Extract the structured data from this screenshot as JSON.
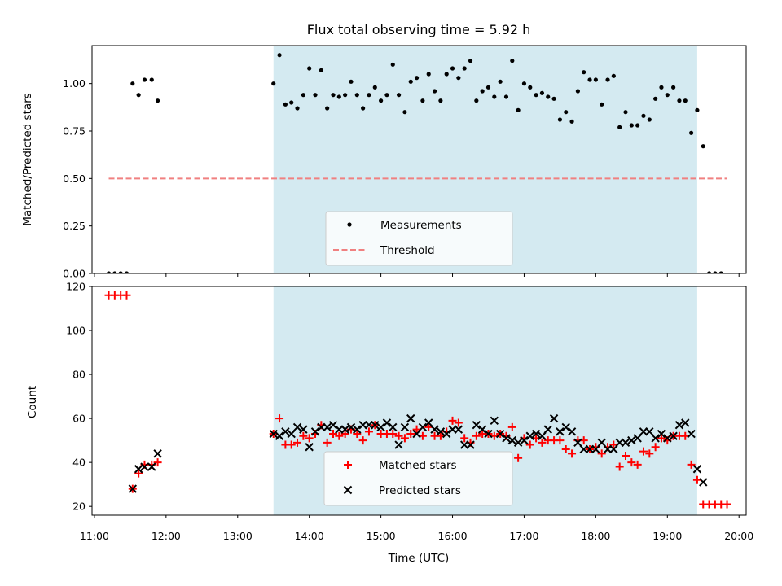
{
  "chart_data": [
    {
      "type": "scatter",
      "title": "Flux total observing time = 5.92 h",
      "xlabel": "",
      "ylabel": "Matched/Predicted stars",
      "xlim": [
        "10:58",
        "20:06"
      ],
      "ylim": [
        0,
        1.2
      ],
      "yticks": [
        "0.00",
        "0.25",
        "0.50",
        "0.75",
        "1.00"
      ],
      "shaded_interval": [
        "13:30",
        "19:25"
      ],
      "shaded_color": "#d4eaf1",
      "grid": false,
      "legend_position": "lower center",
      "legend": [
        "Measurements",
        "Threshold"
      ],
      "series": [
        {
          "name": "Measurements",
          "marker": "dot",
          "color": "#000000",
          "points": [
            [
              "11:12",
              0
            ],
            [
              "11:17",
              0
            ],
            [
              "11:22",
              0
            ],
            [
              "11:27",
              0
            ],
            [
              "11:32",
              1.0
            ],
            [
              "11:37",
              0.94
            ],
            [
              "11:42",
              1.02
            ],
            [
              "11:48",
              1.02
            ],
            [
              "11:53",
              0.91
            ],
            [
              "13:30",
              1.0
            ],
            [
              "13:35",
              1.15
            ],
            [
              "13:40",
              0.89
            ],
            [
              "13:45",
              0.9
            ],
            [
              "13:50",
              0.87
            ],
            [
              "13:55",
              0.94
            ],
            [
              "14:00",
              1.08
            ],
            [
              "14:05",
              0.94
            ],
            [
              "14:10",
              1.07
            ],
            [
              "14:15",
              0.87
            ],
            [
              "14:20",
              0.94
            ],
            [
              "14:25",
              0.93
            ],
            [
              "14:30",
              0.94
            ],
            [
              "14:35",
              1.01
            ],
            [
              "14:40",
              0.94
            ],
            [
              "14:45",
              0.87
            ],
            [
              "14:50",
              0.94
            ],
            [
              "14:55",
              0.98
            ],
            [
              "15:00",
              0.91
            ],
            [
              "15:05",
              0.94
            ],
            [
              "15:10",
              1.1
            ],
            [
              "15:15",
              0.94
            ],
            [
              "15:20",
              0.85
            ],
            [
              "15:25",
              1.01
            ],
            [
              "15:30",
              1.03
            ],
            [
              "15:35",
              0.91
            ],
            [
              "15:40",
              1.05
            ],
            [
              "15:45",
              0.96
            ],
            [
              "15:50",
              0.91
            ],
            [
              "15:55",
              1.05
            ],
            [
              "16:00",
              1.08
            ],
            [
              "16:05",
              1.03
            ],
            [
              "16:10",
              1.08
            ],
            [
              "16:15",
              1.12
            ],
            [
              "16:20",
              0.91
            ],
            [
              "16:25",
              0.96
            ],
            [
              "16:30",
              0.98
            ],
            [
              "16:35",
              0.93
            ],
            [
              "16:40",
              1.01
            ],
            [
              "16:45",
              0.93
            ],
            [
              "16:50",
              1.12
            ],
            [
              "16:55",
              0.86
            ],
            [
              "17:00",
              1.0
            ],
            [
              "17:05",
              0.98
            ],
            [
              "17:10",
              0.94
            ],
            [
              "17:15",
              0.95
            ],
            [
              "17:20",
              0.93
            ],
            [
              "17:25",
              0.92
            ],
            [
              "17:30",
              0.81
            ],
            [
              "17:35",
              0.85
            ],
            [
              "17:40",
              0.8
            ],
            [
              "17:45",
              0.96
            ],
            [
              "17:50",
              1.06
            ],
            [
              "17:55",
              1.02
            ],
            [
              "18:00",
              1.02
            ],
            [
              "18:05",
              0.89
            ],
            [
              "18:10",
              1.02
            ],
            [
              "18:15",
              1.04
            ],
            [
              "18:20",
              0.77
            ],
            [
              "18:25",
              0.85
            ],
            [
              "18:30",
              0.78
            ],
            [
              "18:35",
              0.78
            ],
            [
              "18:40",
              0.83
            ],
            [
              "18:45",
              0.81
            ],
            [
              "18:50",
              0.92
            ],
            [
              "18:55",
              0.98
            ],
            [
              "19:00",
              0.94
            ],
            [
              "19:05",
              0.98
            ],
            [
              "19:10",
              0.91
            ],
            [
              "19:15",
              0.91
            ],
            [
              "19:20",
              0.74
            ],
            [
              "19:25",
              0.86
            ],
            [
              "19:30",
              0.67
            ],
            [
              "19:35",
              0
            ],
            [
              "19:40",
              0
            ],
            [
              "19:45",
              0
            ]
          ]
        },
        {
          "name": "Threshold",
          "type": "line",
          "style": "dashed",
          "color": "#f08080",
          "x": [
            "11:12",
            "19:50"
          ],
          "y": [
            0.5,
            0.5
          ]
        }
      ]
    },
    {
      "type": "scatter",
      "title": "",
      "xlabel": "Time (UTC)",
      "ylabel": "Count",
      "xlim": [
        "10:58",
        "20:06"
      ],
      "ylim": [
        16,
        120
      ],
      "xticks": [
        "11:00",
        "12:00",
        "13:00",
        "14:00",
        "15:00",
        "16:00",
        "17:00",
        "18:00",
        "19:00",
        "20:00"
      ],
      "yticks": [
        "20",
        "40",
        "60",
        "80",
        "100",
        "120"
      ],
      "shaded_interval": [
        "13:30",
        "19:25"
      ],
      "shaded_color": "#d4eaf1",
      "grid": false,
      "legend_position": "lower center",
      "legend": [
        "Matched stars",
        "Predicted stars"
      ],
      "series": [
        {
          "name": "Matched stars",
          "marker": "plus",
          "color": "#ff0000",
          "points": [
            [
              "11:12",
              116
            ],
            [
              "11:17",
              116
            ],
            [
              "11:22",
              116
            ],
            [
              "11:27",
              116
            ],
            [
              "11:32",
              28
            ],
            [
              "11:37",
              35
            ],
            [
              "11:42",
              39
            ],
            [
              "11:48",
              39
            ],
            [
              "11:53",
              40
            ],
            [
              "13:30",
              53
            ],
            [
              "13:35",
              60
            ],
            [
              "13:40",
              48
            ],
            [
              "13:45",
              48
            ],
            [
              "13:50",
              49
            ],
            [
              "13:55",
              52
            ],
            [
              "14:00",
              51
            ],
            [
              "14:05",
              53
            ],
            [
              "14:10",
              57
            ],
            [
              "14:15",
              49
            ],
            [
              "14:20",
              53
            ],
            [
              "14:25",
              52
            ],
            [
              "14:30",
              53
            ],
            [
              "14:35",
              55
            ],
            [
              "14:40",
              53
            ],
            [
              "14:45",
              50
            ],
            [
              "14:50",
              54
            ],
            [
              "14:55",
              57
            ],
            [
              "15:00",
              53
            ],
            [
              "15:05",
              53
            ],
            [
              "15:10",
              53
            ],
            [
              "15:15",
              52
            ],
            [
              "15:20",
              51
            ],
            [
              "15:25",
              53
            ],
            [
              "15:30",
              55
            ],
            [
              "15:35",
              52
            ],
            [
              "15:40",
              56
            ],
            [
              "15:45",
              52
            ],
            [
              "15:50",
              52
            ],
            [
              "15:55",
              54
            ],
            [
              "16:00",
              59
            ],
            [
              "16:05",
              58
            ],
            [
              "16:10",
              51
            ],
            [
              "16:15",
              49
            ],
            [
              "16:20",
              52
            ],
            [
              "16:25",
              53
            ],
            [
              "16:30",
              53
            ],
            [
              "16:35",
              52
            ],
            [
              "16:40",
              53
            ],
            [
              "16:45",
              52
            ],
            [
              "16:50",
              56
            ],
            [
              "16:55",
              42
            ],
            [
              "17:00",
              51
            ],
            [
              "17:05",
              48
            ],
            [
              "17:10",
              51
            ],
            [
              "17:15",
              49
            ],
            [
              "17:20",
              50
            ],
            [
              "17:25",
              50
            ],
            [
              "17:30",
              50
            ],
            [
              "17:35",
              46
            ],
            [
              "17:40",
              44
            ],
            [
              "17:45",
              50
            ],
            [
              "17:50",
              50
            ],
            [
              "17:55",
              46
            ],
            [
              "18:00",
              47
            ],
            [
              "18:05",
              44
            ],
            [
              "18:10",
              47
            ],
            [
              "18:15",
              48
            ],
            [
              "18:20",
              38
            ],
            [
              "18:25",
              43
            ],
            [
              "18:30",
              40
            ],
            [
              "18:35",
              39
            ],
            [
              "18:40",
              45
            ],
            [
              "18:45",
              44
            ],
            [
              "18:50",
              47
            ],
            [
              "18:55",
              51
            ],
            [
              "19:00",
              50
            ],
            [
              "19:05",
              52
            ],
            [
              "19:10",
              52
            ],
            [
              "19:15",
              52
            ],
            [
              "19:20",
              39
            ],
            [
              "19:25",
              32
            ],
            [
              "19:30",
              21
            ],
            [
              "19:35",
              21
            ],
            [
              "19:40",
              21
            ],
            [
              "19:45",
              21
            ],
            [
              "19:50",
              21
            ]
          ]
        },
        {
          "name": "Predicted stars",
          "marker": "x",
          "color": "#000000",
          "points": [
            [
              "11:32",
              28
            ],
            [
              "11:37",
              37
            ],
            [
              "11:42",
              38
            ],
            [
              "11:48",
              38
            ],
            [
              "11:53",
              44
            ],
            [
              "13:30",
              53
            ],
            [
              "13:35",
              52
            ],
            [
              "13:40",
              54
            ],
            [
              "13:45",
              53
            ],
            [
              "13:50",
              56
            ],
            [
              "13:55",
              55
            ],
            [
              "14:00",
              47
            ],
            [
              "14:05",
              54
            ],
            [
              "14:10",
              56
            ],
            [
              "14:15",
              56
            ],
            [
              "14:20",
              57
            ],
            [
              "14:25",
              55
            ],
            [
              "14:30",
              55
            ],
            [
              "14:35",
              56
            ],
            [
              "14:40",
              55
            ],
            [
              "14:45",
              57
            ],
            [
              "14:50",
              57
            ],
            [
              "14:55",
              57
            ],
            [
              "15:00",
              56
            ],
            [
              "15:05",
              58
            ],
            [
              "15:10",
              56
            ],
            [
              "15:15",
              48
            ],
            [
              "15:20",
              56
            ],
            [
              "15:25",
              60
            ],
            [
              "15:30",
              53
            ],
            [
              "15:35",
              56
            ],
            [
              "15:40",
              58
            ],
            [
              "15:45",
              55
            ],
            [
              "15:50",
              54
            ],
            [
              "15:55",
              53
            ],
            [
              "16:00",
              55
            ],
            [
              "16:05",
              55
            ],
            [
              "16:10",
              48
            ],
            [
              "16:15",
              48
            ],
            [
              "16:20",
              57
            ],
            [
              "16:25",
              55
            ],
            [
              "16:30",
              53
            ],
            [
              "16:35",
              59
            ],
            [
              "16:40",
              53
            ],
            [
              "16:45",
              51
            ],
            [
              "16:50",
              50
            ],
            [
              "16:55",
              49
            ],
            [
              "17:00",
              50
            ],
            [
              "17:05",
              52
            ],
            [
              "17:10",
              53
            ],
            [
              "17:15",
              52
            ],
            [
              "17:20",
              55
            ],
            [
              "17:25",
              60
            ],
            [
              "17:30",
              54
            ],
            [
              "17:35",
              56
            ],
            [
              "17:40",
              54
            ],
            [
              "17:45",
              49
            ],
            [
              "17:50",
              46
            ],
            [
              "17:55",
              46
            ],
            [
              "18:00",
              46
            ],
            [
              "18:05",
              49
            ],
            [
              "18:10",
              46
            ],
            [
              "18:15",
              46
            ],
            [
              "18:20",
              49
            ],
            [
              "18:25",
              49
            ],
            [
              "18:30",
              50
            ],
            [
              "18:35",
              51
            ],
            [
              "18:40",
              54
            ],
            [
              "18:45",
              54
            ],
            [
              "18:50",
              51
            ],
            [
              "18:55",
              53
            ],
            [
              "19:00",
              51
            ],
            [
              "19:05",
              52
            ],
            [
              "19:10",
              57
            ],
            [
              "19:15",
              58
            ],
            [
              "19:20",
              53
            ],
            [
              "19:25",
              37
            ],
            [
              "19:30",
              31
            ]
          ]
        }
      ]
    }
  ]
}
